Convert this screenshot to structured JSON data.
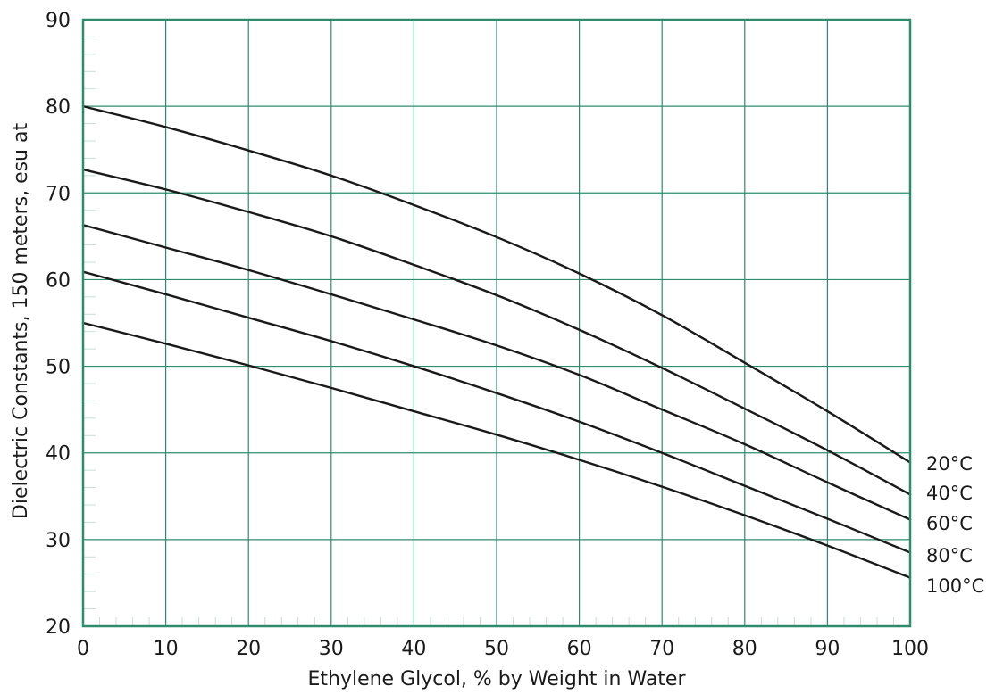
{
  "chart_data": {
    "type": "line",
    "title": "",
    "xlabel": "Ethylene Glycol, % by Weight in Water",
    "ylabel": "Dielectric Constants, 150 meters, esu at",
    "xlim": [
      0,
      100
    ],
    "ylim": [
      20,
      90
    ],
    "x_ticks": [
      "0",
      "10",
      "20",
      "30",
      "40",
      "50",
      "60",
      "70",
      "80",
      "90",
      "100"
    ],
    "y_ticks": [
      "20",
      "30",
      "40",
      "50",
      "60",
      "70",
      "80",
      "90"
    ],
    "grid": true,
    "legend": "right, labels at line ends",
    "colors": {
      "grid": "#2e8b6e",
      "line": "#1a1a1a"
    },
    "x": [
      0,
      10,
      20,
      30,
      40,
      50,
      60,
      70,
      80,
      90,
      100
    ],
    "series": [
      {
        "name": "20°C",
        "values": [
          80.0,
          77.6,
          74.9,
          72.0,
          68.6,
          64.9,
          60.7,
          55.9,
          50.4,
          44.8,
          38.9
        ]
      },
      {
        "name": "40°C",
        "values": [
          72.7,
          70.4,
          67.8,
          65.0,
          61.7,
          58.2,
          54.2,
          49.8,
          45.1,
          40.3,
          35.2
        ]
      },
      {
        "name": "60°C",
        "values": [
          66.3,
          63.7,
          61.1,
          58.3,
          55.4,
          52.4,
          49.0,
          45.0,
          41.0,
          36.6,
          32.3
        ]
      },
      {
        "name": "80°C",
        "values": [
          60.9,
          58.3,
          55.6,
          52.9,
          50.0,
          46.9,
          43.6,
          40.0,
          36.2,
          32.4,
          28.5
        ]
      },
      {
        "name": "100°C",
        "values": [
          55.0,
          52.6,
          50.1,
          47.5,
          44.8,
          42.1,
          39.2,
          36.1,
          32.8,
          29.3,
          25.6
        ]
      }
    ]
  }
}
